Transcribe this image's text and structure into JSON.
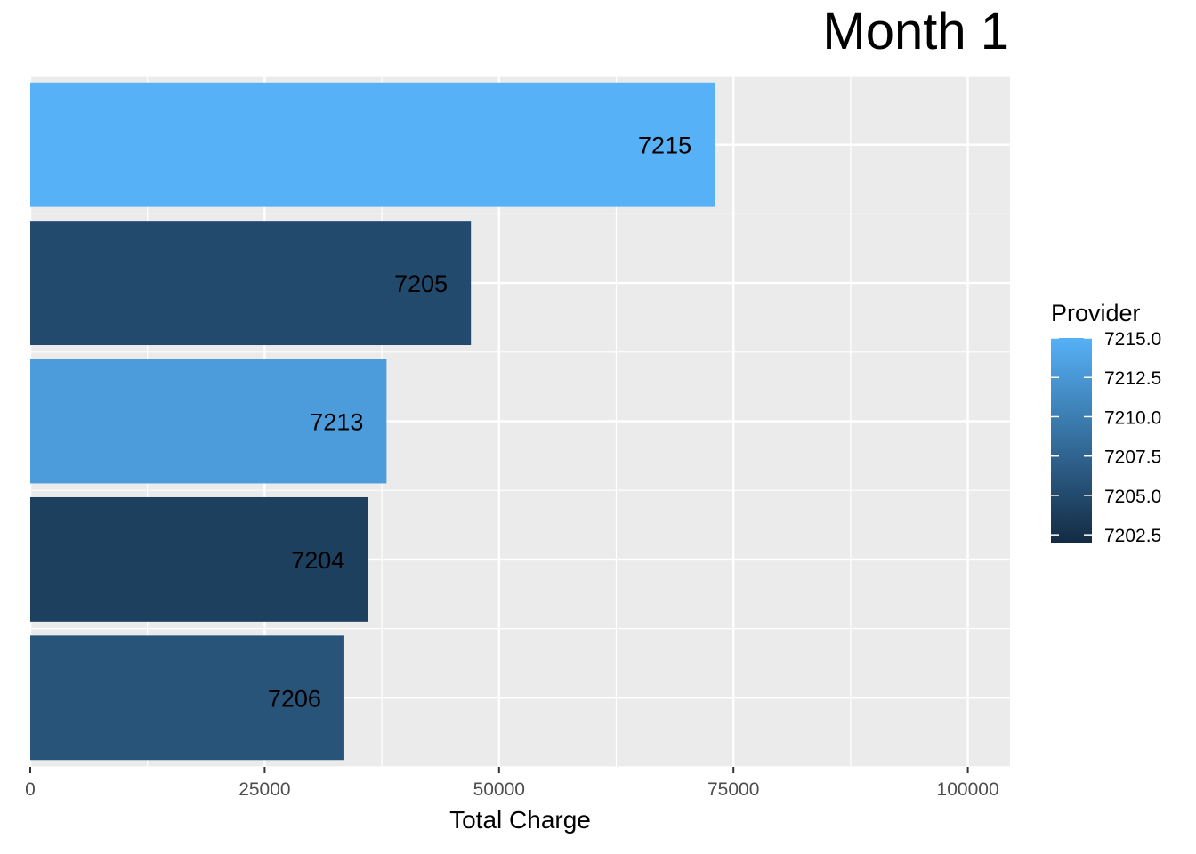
{
  "chart_data": {
    "type": "bar",
    "orientation": "horizontal",
    "title": "Month 1",
    "xlabel": "Total Charge",
    "ylabel": "",
    "xlim": [
      0,
      104500
    ],
    "x_ticks": [
      0,
      25000,
      50000,
      75000,
      100000
    ],
    "x_tick_labels": [
      "0",
      "25000",
      "50000",
      "75000",
      "100000"
    ],
    "grid": true,
    "bars": [
      {
        "label": "7215",
        "provider": 7215,
        "value": 73000
      },
      {
        "label": "7205",
        "provider": 7205,
        "value": 47000
      },
      {
        "label": "7213",
        "provider": 7213,
        "value": 38000
      },
      {
        "label": "7204",
        "provider": 7204,
        "value": 36000
      },
      {
        "label": "7206",
        "provider": 7206,
        "value": 33500
      }
    ],
    "legend": {
      "title": "Provider",
      "placement": "right",
      "range": [
        7202.0,
        7215.0
      ],
      "ticks": [
        7215.0,
        7212.5,
        7210.0,
        7207.5,
        7205.0,
        7202.5
      ],
      "tick_labels": [
        "7215.0",
        "7212.5",
        "7210.0",
        "7207.5",
        "7205.0",
        "7202.5"
      ],
      "color_low": "#132B43",
      "color_high": "#56B1F7"
    }
  }
}
